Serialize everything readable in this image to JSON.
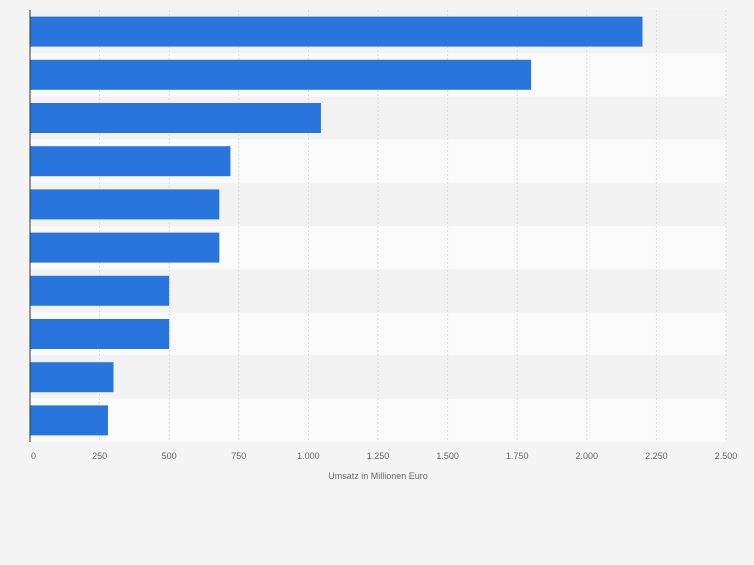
{
  "chart_data": {
    "type": "bar",
    "orientation": "horizontal",
    "categories": [
      "",
      "",
      "",
      "",
      "",
      "",
      "",
      "",
      "",
      ""
    ],
    "values": [
      2200,
      1800,
      1045,
      720,
      680,
      680,
      500,
      500,
      300,
      280
    ],
    "title": "",
    "xlabel": "Umsatz in Millionen Euro",
    "ylabel": "",
    "xlim": [
      0,
      2500
    ],
    "xticks": [
      0,
      250,
      500,
      750,
      1000,
      1250,
      1500,
      1750,
      2000,
      2250,
      2500
    ],
    "xtick_labels": [
      "0",
      "250",
      "500",
      "750",
      "1.000",
      "1.250",
      "1.500",
      "1.750",
      "2.000",
      "2.250",
      "2.500"
    ],
    "grid": true,
    "legend": "none",
    "colors": {
      "bar": "#2876dd",
      "band_light": "#fafafa",
      "band_dark": "#f2f2f2",
      "background": "#f4f4f4",
      "gridline": "#dcdcdc",
      "axis": "#333333",
      "tick_text": "#666666"
    }
  }
}
